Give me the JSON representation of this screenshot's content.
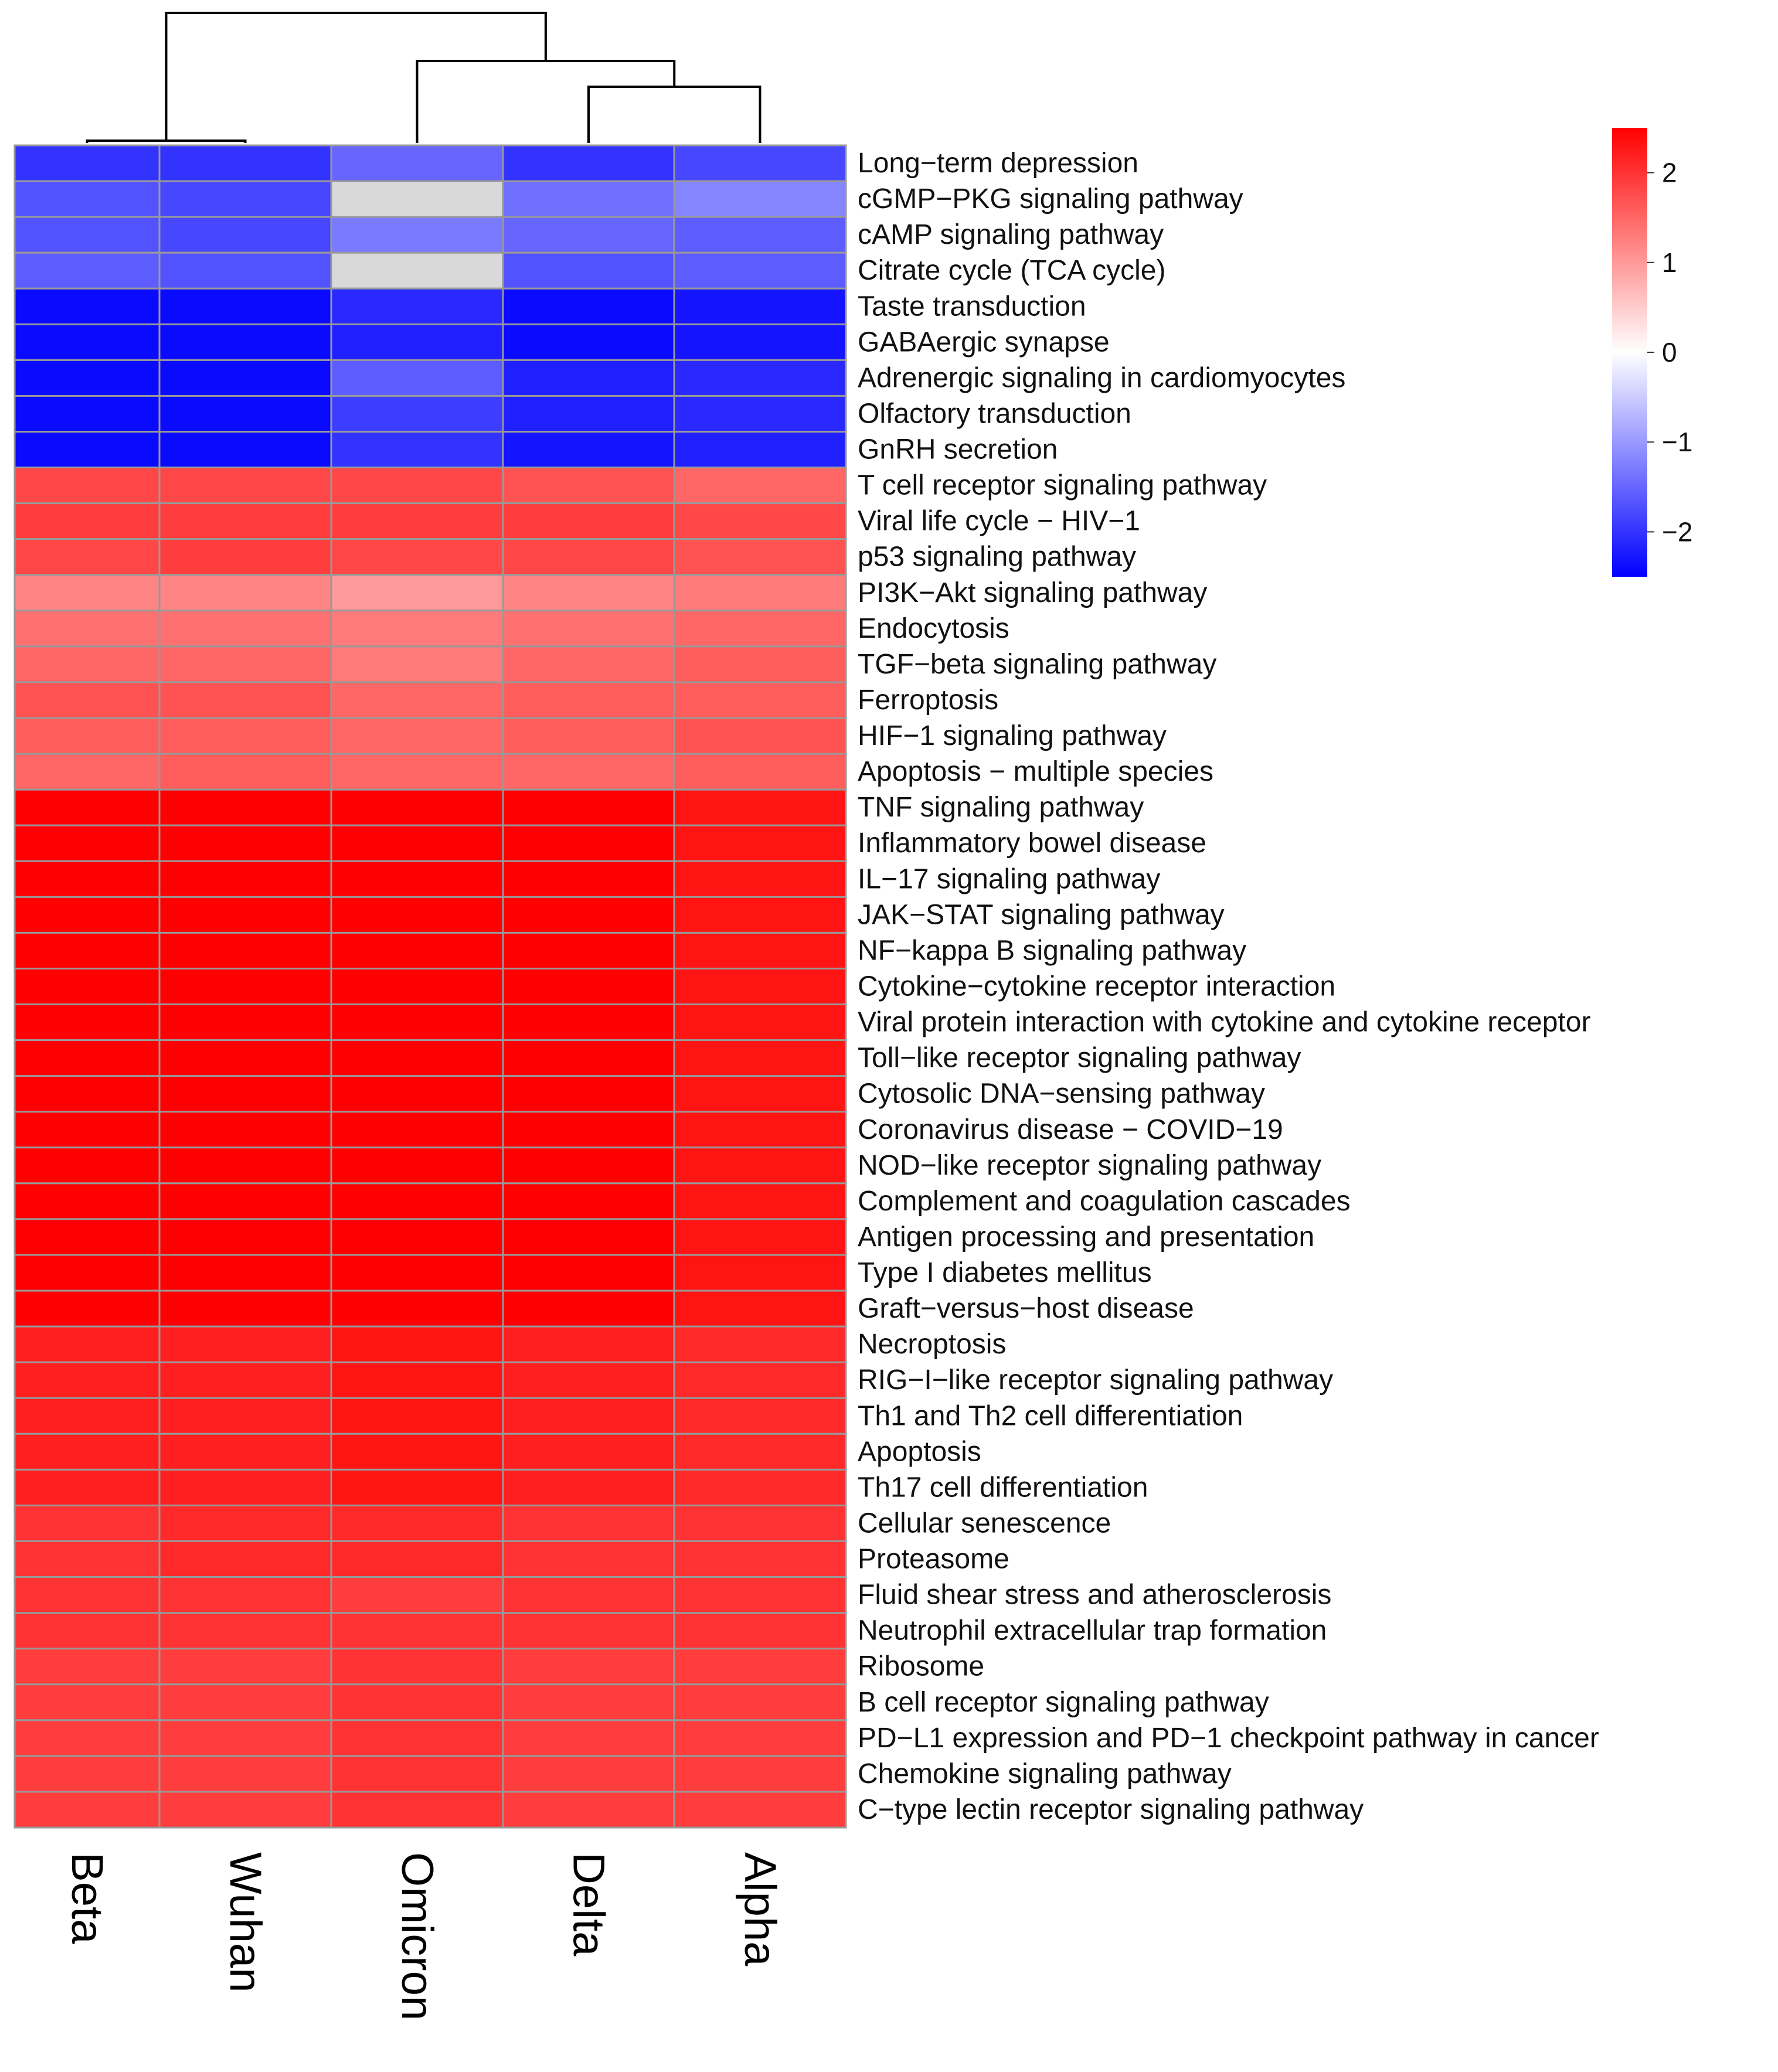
{
  "chart_data": {
    "type": "heatmap",
    "title": "",
    "columns": [
      "Beta",
      "Wuhan",
      "Omicron",
      "Delta",
      "Alpha"
    ],
    "rows": [
      "Long−term depression",
      "cGMP−PKG signaling pathway",
      "cAMP signaling pathway",
      "Citrate cycle (TCA cycle)",
      "Taste transduction",
      "GABAergic synapse",
      "Adrenergic signaling in cardiomyocytes",
      "Olfactory transduction",
      "GnRH secretion",
      "T cell receptor signaling pathway",
      "Viral life cycle − HIV−1",
      "p53 signaling pathway",
      "PI3K−Akt signaling pathway",
      "Endocytosis",
      "TGF−beta signaling pathway",
      "Ferroptosis",
      "HIF−1 signaling pathway",
      "Apoptosis − multiple species",
      "TNF signaling pathway",
      "Inflammatory bowel disease",
      "IL−17 signaling pathway",
      "JAK−STAT signaling pathway",
      "NF−kappa B signaling pathway",
      "Cytokine−cytokine receptor interaction",
      "Viral protein interaction with cytokine and cytokine receptor",
      "Toll−like receptor signaling pathway",
      "Cytosolic DNA−sensing pathway",
      "Coronavirus disease − COVID−19",
      "NOD−like receptor signaling pathway",
      "Complement and coagulation cascades",
      "Antigen processing and presentation",
      "Type I diabetes mellitus",
      "Graft−versus−host disease",
      "Necroptosis",
      "RIG−I−like receptor signaling pathway",
      "Th1 and Th2 cell differentiation",
      "Apoptosis",
      "Th17 cell differentiation",
      "Cellular senescence",
      "Proteasome",
      "Fluid shear stress and atherosclerosis",
      "Neutrophil extracellular trap formation",
      "Ribosome",
      "B cell receptor signaling pathway",
      "PD−L1 expression and PD−1 checkpoint pathway in cancer",
      "Chemokine signaling pathway",
      "C−type lectin receptor signaling pathway"
    ],
    "values": [
      [
        -2.0,
        -2.0,
        -1.5,
        -2.0,
        -1.8
      ],
      [
        -1.7,
        -1.8,
        null,
        -1.4,
        -1.2
      ],
      [
        -1.7,
        -1.8,
        -1.3,
        -1.5,
        -1.6
      ],
      [
        -1.6,
        -1.7,
        null,
        -1.7,
        -1.6
      ],
      [
        -2.4,
        -2.4,
        -2.1,
        -2.4,
        -2.3
      ],
      [
        -2.4,
        -2.4,
        -2.2,
        -2.4,
        -2.3
      ],
      [
        -2.4,
        -2.4,
        -1.6,
        -2.2,
        -2.1
      ],
      [
        -2.4,
        -2.4,
        -1.9,
        -2.2,
        -2.1
      ],
      [
        -2.4,
        -2.4,
        -2.0,
        -2.3,
        -2.2
      ],
      [
        1.8,
        1.8,
        1.8,
        1.7,
        1.5
      ],
      [
        1.9,
        1.9,
        1.9,
        1.9,
        1.8
      ],
      [
        1.8,
        1.9,
        1.8,
        1.8,
        1.7
      ],
      [
        1.2,
        1.2,
        1.0,
        1.2,
        1.3
      ],
      [
        1.4,
        1.4,
        1.3,
        1.4,
        1.5
      ],
      [
        1.5,
        1.5,
        1.3,
        1.5,
        1.6
      ],
      [
        1.7,
        1.7,
        1.5,
        1.6,
        1.6
      ],
      [
        1.6,
        1.6,
        1.5,
        1.6,
        1.7
      ],
      [
        1.5,
        1.6,
        1.5,
        1.5,
        1.6
      ],
      [
        2.5,
        2.5,
        2.5,
        2.5,
        2.3
      ],
      [
        2.5,
        2.5,
        2.5,
        2.5,
        2.3
      ],
      [
        2.5,
        2.5,
        2.5,
        2.5,
        2.3
      ],
      [
        2.5,
        2.5,
        2.5,
        2.5,
        2.3
      ],
      [
        2.5,
        2.5,
        2.5,
        2.5,
        2.3
      ],
      [
        2.5,
        2.5,
        2.5,
        2.5,
        2.3
      ],
      [
        2.5,
        2.5,
        2.5,
        2.5,
        2.3
      ],
      [
        2.5,
        2.5,
        2.5,
        2.5,
        2.3
      ],
      [
        2.5,
        2.5,
        2.5,
        2.5,
        2.3
      ],
      [
        2.5,
        2.5,
        2.5,
        2.5,
        2.3
      ],
      [
        2.5,
        2.5,
        2.5,
        2.5,
        2.3
      ],
      [
        2.5,
        2.5,
        2.5,
        2.5,
        2.3
      ],
      [
        2.5,
        2.5,
        2.5,
        2.5,
        2.3
      ],
      [
        2.5,
        2.5,
        2.5,
        2.5,
        2.3
      ],
      [
        2.5,
        2.5,
        2.5,
        2.5,
        2.3
      ],
      [
        2.2,
        2.2,
        2.3,
        2.2,
        2.1
      ],
      [
        2.2,
        2.2,
        2.3,
        2.2,
        2.1
      ],
      [
        2.2,
        2.2,
        2.3,
        2.2,
        2.1
      ],
      [
        2.2,
        2.2,
        2.3,
        2.2,
        2.1
      ],
      [
        2.2,
        2.2,
        2.3,
        2.2,
        2.1
      ],
      [
        2.0,
        2.1,
        2.1,
        2.0,
        2.0
      ],
      [
        2.0,
        2.1,
        2.1,
        2.0,
        2.0
      ],
      [
        2.0,
        2.0,
        1.9,
        2.0,
        2.0
      ],
      [
        2.0,
        2.0,
        2.0,
        2.0,
        2.0
      ],
      [
        1.9,
        1.9,
        2.0,
        1.9,
        1.9
      ],
      [
        1.9,
        1.9,
        2.0,
        1.9,
        1.9
      ],
      [
        1.9,
        1.9,
        2.0,
        1.9,
        1.9
      ],
      [
        1.9,
        1.9,
        2.0,
        1.9,
        1.9
      ],
      [
        1.9,
        1.9,
        2.0,
        1.9,
        1.9
      ]
    ],
    "missing_color": "#d9d9d9",
    "grid_color": "#999999",
    "color_scale": {
      "min": -2.5,
      "max": 2.5,
      "low_color": "#0000ff",
      "mid_color": "#ffffff",
      "high_color": "#ff0000",
      "ticks": [
        2,
        1,
        0,
        -1,
        -2
      ],
      "tick_labels": [
        "2",
        "1",
        "0",
        "−1",
        "−2"
      ]
    },
    "dendrogram": "((Beta,Wuhan),(Omicron,(Delta,Alpha)))"
  }
}
